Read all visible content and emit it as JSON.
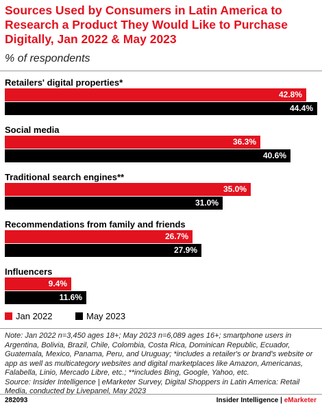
{
  "header": {
    "title": "Sources Used by Consumers in Latin America to Research a Product They Would Like to Purchase Digitally, Jan 2022 & May 2023",
    "subtitle": "% of respondents"
  },
  "chart_data": {
    "type": "bar",
    "orientation": "horizontal",
    "title": "Sources Used by Consumers in Latin America to Research a Product They Would Like to Purchase Digitally, Jan 2022 & May 2023",
    "subtitle": "% of respondents",
    "categories": [
      "Retailers' digital properties*",
      "Social media",
      "Traditional search engines**",
      "Recommendations from family and friends",
      "Influencers"
    ],
    "series": [
      {
        "name": "Jan 2022",
        "color": "#e3121f",
        "values": [
          42.8,
          36.3,
          35.0,
          26.7,
          9.4
        ],
        "labels": [
          "42.8%",
          "36.3%",
          "35.0%",
          "26.7%",
          "9.4%"
        ]
      },
      {
        "name": "May 2023",
        "color": "#000000",
        "values": [
          44.4,
          40.6,
          31.0,
          27.9,
          11.6
        ],
        "labels": [
          "44.4%",
          "40.6%",
          "31.0%",
          "27.9%",
          "11.6%"
        ]
      }
    ],
    "xlim": [
      0,
      44.4
    ],
    "legend": "bottom-left",
    "grid": false
  },
  "note": "Note: Jan 2022 n=3,450 ages 18+; May 2023 n=6,089 ages 16+; smartphone users in Argentina, Bolivia, Brazil, Chile, Colombia, Costa Rica, Dominican Republic, Ecuador, Guatemala, Mexico, Panama, Peru, and Uruguay; *includes a retailer's or brand's website or app as well as multicategory websites and digital marketplaces like Amazon, Americanas, Falabella, Linio, Mercado Libre, etc.; **includes Bing, Google, Yahoo, etc.",
  "source": "Source: Insider Intelligence | eMarketer Survey, Digital Shoppers in Latin America: Retail Media, conducted by Livepanel, May 2023",
  "footer": {
    "id": "282093",
    "brand_left": "Insider Intelligence",
    "brand_sep": " | ",
    "brand_right": "eMarketer"
  }
}
